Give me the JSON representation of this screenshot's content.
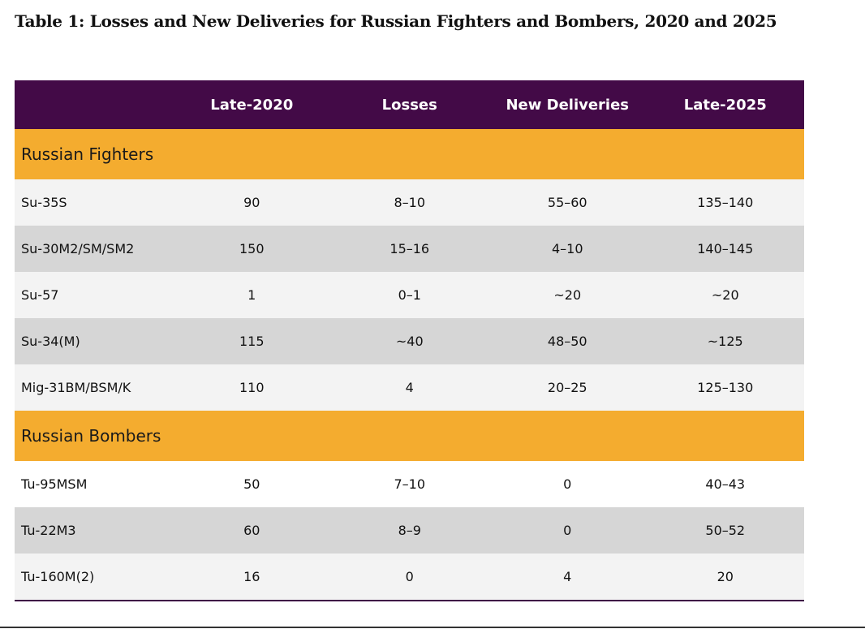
{
  "title": "Table 1: Losses and New Deliveries for Russian Fighters and Bombers, 2020 and 2025",
  "columns": [
    "",
    "Late-2020",
    "Losses",
    "New Deliveries",
    "Late-2025"
  ],
  "colors": {
    "header": "#430a47",
    "section": "#f4ac2f",
    "row_light": "#f3f3f3",
    "row_dark": "#d6d6d6"
  },
  "sections": [
    {
      "label": "Russian Fighters",
      "rows": [
        [
          "Su-35S",
          "90",
          "8–10",
          "55–60",
          "135–140"
        ],
        [
          "Su-30M2/SM/SM2",
          "150",
          "15–16",
          "4–10",
          "140–145"
        ],
        [
          "Su-57",
          "1",
          "0–1",
          "~20",
          "~20"
        ],
        [
          "Su-34(M)",
          "115",
          "~40",
          "48–50",
          "~125"
        ],
        [
          "Mig-31BM/BSM/K",
          "110",
          "4",
          "20–25",
          "125–130"
        ]
      ]
    },
    {
      "label": "Russian Bombers",
      "rows": [
        [
          "Tu-95MSM",
          "50",
          "7–10",
          "0",
          "40–43"
        ],
        [
          "Tu-22M3",
          "60",
          "8–9",
          "0",
          "50–52"
        ],
        [
          "Tu-160M(2)",
          "16",
          "0",
          "4",
          "20"
        ]
      ]
    }
  ]
}
